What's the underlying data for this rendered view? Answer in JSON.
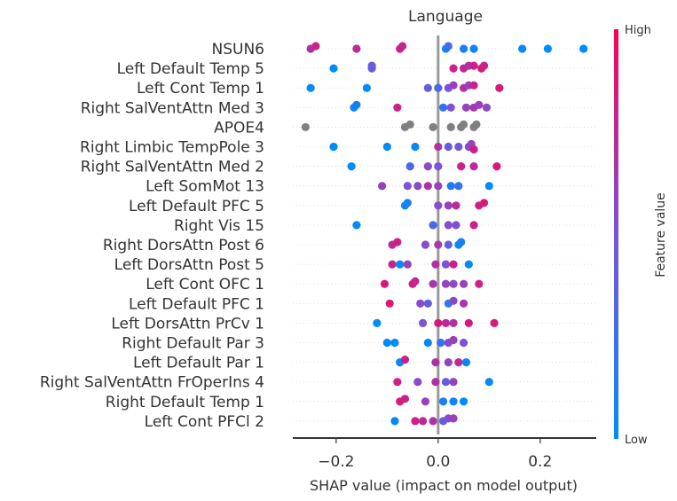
{
  "chart_data": {
    "type": "scatter",
    "subtype": "shap-beeswarm",
    "title": "Language",
    "xlabel": "SHAP value (impact on model output)",
    "xlim": [
      -0.285,
      0.31
    ],
    "xticks": [
      -0.2,
      0.0,
      0.2
    ],
    "xtick_labels": [
      "−0.2",
      "0.0",
      "0.2"
    ],
    "colorbar": {
      "label": "Feature value",
      "high_label": "High",
      "low_label": "Low",
      "high_color": "#ff0052",
      "low_color": "#008bfb",
      "missing_color": "#808080"
    },
    "features": [
      {
        "name": "NSUN6",
        "points": [
          [
            -0.25,
            0.7
          ],
          [
            -0.24,
            0.8
          ],
          [
            -0.16,
            0.75
          ],
          [
            -0.075,
            0.8
          ],
          [
            -0.07,
            0.78
          ],
          [
            0.015,
            0.05
          ],
          [
            0.02,
            0.3
          ],
          [
            0.05,
            0.1
          ],
          [
            0.07,
            0.05
          ],
          [
            0.165,
            0.0
          ],
          [
            0.215,
            0.0
          ],
          [
            0.285,
            0.0
          ]
        ]
      },
      {
        "name": "Left Default Temp 5",
        "points": [
          [
            -0.205,
            0.0
          ],
          [
            -0.13,
            0.4
          ],
          [
            -0.13,
            0.4
          ],
          [
            0.03,
            0.8
          ],
          [
            0.05,
            0.75
          ],
          [
            0.06,
            0.7
          ],
          [
            0.07,
            0.8
          ],
          [
            0.085,
            0.85
          ],
          [
            0.09,
            0.8
          ]
        ]
      },
      {
        "name": "Left Cont Temp 1",
        "points": [
          [
            -0.25,
            0.0
          ],
          [
            -0.14,
            0.0
          ],
          [
            -0.02,
            0.4
          ],
          [
            0.0,
            0.3
          ],
          [
            0.02,
            0.5
          ],
          [
            0.03,
            0.6
          ],
          [
            0.05,
            0.7
          ],
          [
            0.06,
            0.6
          ],
          [
            0.07,
            0.8
          ],
          [
            0.12,
            0.85
          ]
        ]
      },
      {
        "name": "Right SalVentAttn Med 3",
        "points": [
          [
            -0.165,
            0.05
          ],
          [
            -0.16,
            0.1
          ],
          [
            -0.08,
            0.8
          ],
          [
            0.01,
            0.2
          ],
          [
            0.025,
            0.5
          ],
          [
            0.055,
            0.6
          ],
          [
            0.07,
            0.65
          ],
          [
            0.08,
            0.6
          ],
          [
            0.095,
            0.55
          ]
        ]
      },
      {
        "name": "APOE4",
        "points": [
          [
            -0.26,
            null
          ],
          [
            -0.065,
            null
          ],
          [
            -0.055,
            null
          ],
          [
            -0.01,
            null
          ],
          [
            0.025,
            null
          ],
          [
            0.045,
            null
          ],
          [
            0.05,
            null
          ],
          [
            0.07,
            null
          ],
          [
            0.075,
            null
          ]
        ]
      },
      {
        "name": "Right Limbic TempPole 3",
        "points": [
          [
            -0.205,
            0.0
          ],
          [
            -0.1,
            0.0
          ],
          [
            -0.045,
            0.05
          ],
          [
            0.0,
            0.7
          ],
          [
            0.02,
            0.4
          ],
          [
            0.04,
            0.45
          ],
          [
            0.06,
            0.55
          ],
          [
            0.065,
            0.6
          ],
          [
            0.07,
            0.8
          ]
        ]
      },
      {
        "name": "Right SalVentAttn Med 2",
        "points": [
          [
            -0.17,
            0.0
          ],
          [
            -0.055,
            0.3
          ],
          [
            -0.02,
            0.55
          ],
          [
            0.0,
            0.5
          ],
          [
            0.045,
            0.8
          ],
          [
            0.07,
            0.75
          ],
          [
            0.115,
            0.85
          ]
        ]
      },
      {
        "name": "Left SomMot 13",
        "points": [
          [
            -0.11,
            0.6
          ],
          [
            -0.06,
            0.5
          ],
          [
            -0.04,
            0.55
          ],
          [
            -0.02,
            0.7
          ],
          [
            0.0,
            0.6
          ],
          [
            0.025,
            0.15
          ],
          [
            0.04,
            0.2
          ],
          [
            0.1,
            0.0
          ]
        ]
      },
      {
        "name": "Left Default PFC 5",
        "points": [
          [
            -0.065,
            0.05
          ],
          [
            -0.06,
            0.1
          ],
          [
            0.0,
            0.55
          ],
          [
            0.02,
            0.6
          ],
          [
            0.035,
            0.75
          ],
          [
            0.08,
            0.8
          ],
          [
            0.09,
            0.85
          ]
        ]
      },
      {
        "name": "Right Vis 15",
        "points": [
          [
            -0.16,
            0.0
          ],
          [
            -0.01,
            0.3
          ],
          [
            0.02,
            0.55
          ],
          [
            0.035,
            0.5
          ],
          [
            0.07,
            0.8
          ]
        ]
      },
      {
        "name": "Right DorsAttn Post 6",
        "points": [
          [
            -0.09,
            0.75
          ],
          [
            -0.08,
            0.8
          ],
          [
            -0.025,
            0.55
          ],
          [
            0.0,
            0.65
          ],
          [
            0.02,
            0.4
          ],
          [
            0.04,
            0.05
          ],
          [
            0.045,
            0.1
          ]
        ]
      },
      {
        "name": "Left DorsAttn Post 5",
        "points": [
          [
            -0.09,
            0.8
          ],
          [
            -0.075,
            0.0
          ],
          [
            -0.06,
            0.6
          ],
          [
            -0.005,
            0.7
          ],
          [
            0.015,
            0.5
          ],
          [
            0.03,
            0.8
          ],
          [
            0.06,
            0.0
          ]
        ]
      },
      {
        "name": "Left Cont OFC 1",
        "points": [
          [
            -0.105,
            0.85
          ],
          [
            -0.05,
            0.8
          ],
          [
            -0.045,
            0.75
          ],
          [
            -0.01,
            0.65
          ],
          [
            0.015,
            0.6
          ],
          [
            0.03,
            0.55
          ],
          [
            0.05,
            0.6
          ],
          [
            0.08,
            0.8
          ]
        ]
      },
      {
        "name": "Left Default PFC 1",
        "points": [
          [
            -0.095,
            0.85
          ],
          [
            -0.035,
            0.55
          ],
          [
            -0.02,
            0.4
          ],
          [
            0.02,
            0.2
          ],
          [
            0.03,
            0.55
          ],
          [
            0.05,
            0.65
          ]
        ]
      },
      {
        "name": "Left DorsAttn PrCv 1",
        "points": [
          [
            -0.12,
            0.0
          ],
          [
            -0.03,
            0.5
          ],
          [
            0.0,
            0.85
          ],
          [
            0.015,
            0.75
          ],
          [
            0.03,
            0.7
          ],
          [
            0.06,
            0.85
          ],
          [
            0.11,
            0.85
          ]
        ]
      },
      {
        "name": "Right Default Par 3",
        "points": [
          [
            -0.1,
            0.0
          ],
          [
            -0.085,
            0.0
          ],
          [
            -0.02,
            0.05
          ],
          [
            0.005,
            0.2
          ],
          [
            0.02,
            0.55
          ],
          [
            0.03,
            0.6
          ],
          [
            0.05,
            0.5
          ]
        ]
      },
      {
        "name": "Left Default Par 1",
        "points": [
          [
            -0.075,
            0.05
          ],
          [
            -0.065,
            0.8
          ],
          [
            -0.005,
            0.7
          ],
          [
            0.02,
            0.6
          ],
          [
            0.04,
            0.75
          ],
          [
            0.055,
            0.05
          ]
        ]
      },
      {
        "name": "Right SalVentAttn FrOperIns 4",
        "points": [
          [
            -0.08,
            0.8
          ],
          [
            -0.04,
            0.55
          ],
          [
            -0.005,
            0.7
          ],
          [
            0.015,
            0.4
          ],
          [
            0.03,
            0.6
          ],
          [
            0.1,
            0.0
          ]
        ]
      },
      {
        "name": "Right Default Temp 1",
        "points": [
          [
            -0.075,
            0.85
          ],
          [
            -0.065,
            0.8
          ],
          [
            -0.025,
            0.6
          ],
          [
            0.01,
            0.1
          ],
          [
            0.03,
            0.05
          ],
          [
            0.05,
            0.0
          ]
        ]
      },
      {
        "name": "Left Cont PFCl 2",
        "points": [
          [
            -0.085,
            0.0
          ],
          [
            -0.045,
            0.8
          ],
          [
            -0.03,
            0.75
          ],
          [
            -0.01,
            0.7
          ],
          [
            0.01,
            0.4
          ],
          [
            0.02,
            0.55
          ],
          [
            0.03,
            0.6
          ]
        ]
      }
    ]
  }
}
